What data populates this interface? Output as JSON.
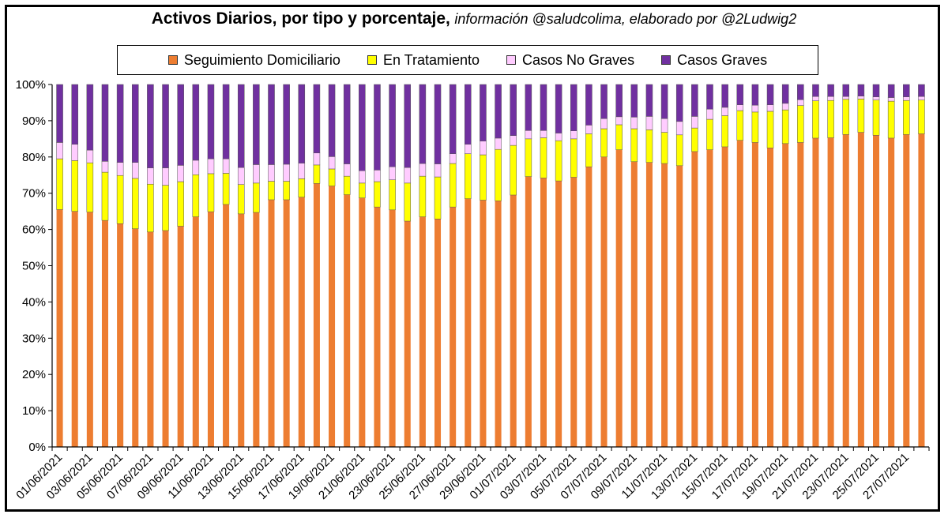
{
  "title": {
    "main": "Activos Diarios, por tipo y porcentaje,",
    "sub": "información @saludcolima, elaborado por @2Ludwig2"
  },
  "colors": {
    "seguimiento": "#ED7D31",
    "tratamiento": "#FFFF00",
    "no_graves": "#FFCCFF",
    "graves": "#7030A0"
  },
  "chart_data": {
    "type": "bar",
    "stacked": true,
    "title": "Activos Diarios, por tipo y porcentaje, información @saludcolima, elaborado por @2Ludwig2",
    "legend_position": "top",
    "ylim": [
      0,
      100
    ],
    "y_ticks": [
      "0%",
      "10%",
      "20%",
      "30%",
      "40%",
      "50%",
      "60%",
      "70%",
      "80%",
      "90%",
      "100%"
    ],
    "categories": [
      "01/06/2021",
      "02/06/2021",
      "03/06/2021",
      "04/06/2021",
      "05/06/2021",
      "06/06/2021",
      "07/06/2021",
      "08/06/2021",
      "09/06/2021",
      "10/06/2021",
      "11/06/2021",
      "12/06/2021",
      "13/06/2021",
      "14/06/2021",
      "15/06/2021",
      "16/06/2021",
      "17/06/2021",
      "18/06/2021",
      "19/06/2021",
      "20/06/2021",
      "21/06/2021",
      "22/06/2021",
      "23/06/2021",
      "24/06/2021",
      "25/06/2021",
      "26/06/2021",
      "27/06/2021",
      "28/06/2021",
      "29/06/2021",
      "30/06/2021",
      "01/07/2021",
      "02/07/2021",
      "03/07/2021",
      "04/07/2021",
      "05/07/2021",
      "06/07/2021",
      "07/07/2021",
      "08/07/2021",
      "09/07/2021",
      "10/07/2021",
      "11/07/2021",
      "12/07/2021",
      "13/07/2021",
      "14/07/2021",
      "15/07/2021",
      "16/07/2021",
      "17/07/2021",
      "18/07/2021",
      "19/07/2021",
      "20/07/2021",
      "21/07/2021",
      "22/07/2021",
      "23/07/2021",
      "24/07/2021",
      "25/07/2021",
      "26/07/2021",
      "27/07/2021",
      "28/07/2021"
    ],
    "x_tick_labels": [
      "01/06/2021",
      "03/06/2021",
      "05/06/2021",
      "07/06/2021",
      "09/06/2021",
      "11/06/2021",
      "13/06/2021",
      "15/06/2021",
      "17/06/2021",
      "19/06/2021",
      "21/06/2021",
      "23/06/2021",
      "25/06/2021",
      "27/06/2021",
      "29/06/2021",
      "01/07/2021",
      "03/07/2021",
      "05/07/2021",
      "07/07/2021",
      "09/07/2021",
      "11/07/2021",
      "13/07/2021",
      "15/07/2021",
      "17/07/2021",
      "19/07/2021",
      "21/07/2021",
      "23/07/2021",
      "25/07/2021",
      "27/07/2021"
    ],
    "series": [
      {
        "name": "Seguimiento Domiciliario",
        "values": [
          65.5,
          65,
          64.8,
          62.5,
          61.6,
          60.2,
          59.3,
          59.7,
          60.9,
          63.5,
          64.9,
          66.9,
          64.3,
          64.7,
          68.2,
          68.2,
          68.9,
          72.7,
          72,
          69.6,
          68.7,
          66.2,
          65.4,
          62.3,
          63.5,
          62.9,
          66.2,
          68.5,
          68.1,
          67.9,
          69.5,
          74.6,
          74.2,
          73.4,
          74.4,
          77.3,
          80,
          82,
          78.7,
          78.5,
          78.2,
          77.6,
          81.5,
          82,
          82.8,
          84.6,
          84,
          82.5,
          83.7,
          84,
          85.2,
          85.3,
          86.2,
          86.8,
          86,
          85.2,
          86.2,
          86.4
        ]
      },
      {
        "name": "En Tratamiento",
        "values": [
          14,
          14,
          13.6,
          13.3,
          13.3,
          13.9,
          13.2,
          12.5,
          12.3,
          11.6,
          10.5,
          8.6,
          8.1,
          8.1,
          5.1,
          5.1,
          5.1,
          5.1,
          4.7,
          5.1,
          4.1,
          7,
          8.3,
          10.5,
          11.2,
          11.6,
          12,
          12.4,
          12.5,
          14.2,
          13.7,
          10.4,
          11.1,
          11.1,
          10.6,
          9.1,
          7.8,
          6.9,
          9.1,
          9,
          8.6,
          8.5,
          6.5,
          8.4,
          8.6,
          8.2,
          8.4,
          10.1,
          9.3,
          10.2,
          10.3,
          10.3,
          9.7,
          9.2,
          9.7,
          10.2,
          9.4,
          9.3
        ]
      },
      {
        "name": "Casos No Graves",
        "values": [
          4.5,
          4.5,
          3.5,
          3,
          3.6,
          4.4,
          4.5,
          4.8,
          4.5,
          4,
          4.1,
          4,
          4.7,
          5.1,
          4.6,
          4.7,
          4.3,
          3.3,
          3.4,
          3.4,
          3.4,
          3.2,
          3.6,
          4.3,
          3.5,
          3.6,
          2.7,
          2.6,
          3.8,
          3.1,
          2.7,
          2.3,
          2,
          2.1,
          2.2,
          2.4,
          2.8,
          2.2,
          3.2,
          3.7,
          3.8,
          3.7,
          3.2,
          2.8,
          2.3,
          1.6,
          1.9,
          1.8,
          1.8,
          1.6,
          1.2,
          1.1,
          0.8,
          0.8,
          0.9,
          1,
          1,
          1
        ]
      },
      {
        "name": "Casos Graves",
        "values": [
          16,
          16.5,
          18.1,
          21.2,
          21.5,
          21.5,
          23,
          23,
          22.3,
          20.9,
          20.5,
          20.5,
          22.9,
          22.1,
          22.1,
          22,
          21.7,
          18.9,
          19.9,
          21.9,
          23.8,
          23.6,
          22.7,
          22.9,
          21.8,
          21.9,
          19.1,
          16.5,
          15.6,
          14.8,
          14.1,
          12.7,
          12.7,
          13.4,
          12.8,
          11.2,
          9.4,
          8.9,
          9,
          8.8,
          9.4,
          10.2,
          8.8,
          6.8,
          6.3,
          5.6,
          5.7,
          5.6,
          5.2,
          4.2,
          3.3,
          3.3,
          3.3,
          3.2,
          3.4,
          3.6,
          3.4,
          3.3
        ]
      }
    ]
  }
}
